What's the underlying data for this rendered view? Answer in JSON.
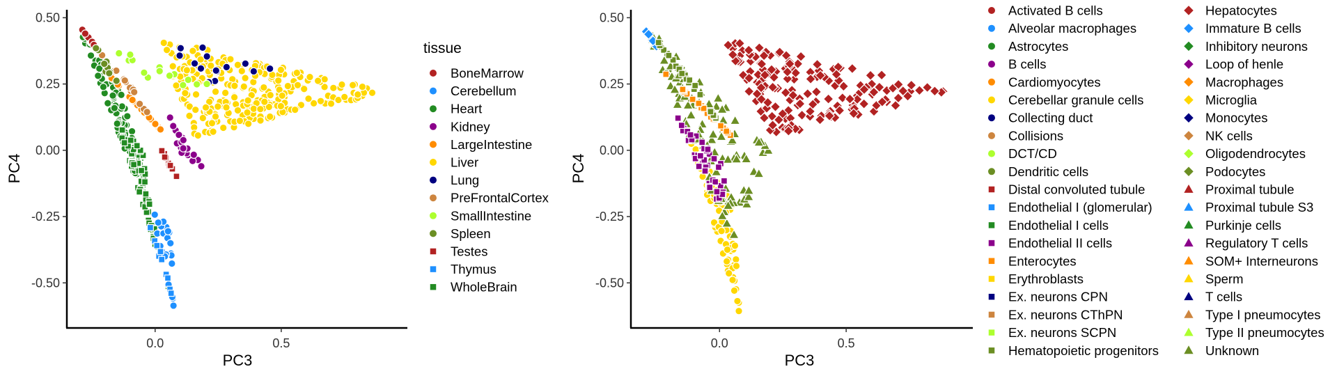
{
  "chart_data": [
    {
      "type": "scatter",
      "xlabel": "PC3",
      "ylabel": "PC4",
      "xlim": [
        -0.35,
        1.0
      ],
      "ylim": [
        -0.67,
        0.53
      ],
      "xticks": [
        0.0,
        0.5
      ],
      "xtick_labels": [
        "0.0",
        "0.5"
      ],
      "yticks": [
        0.5,
        0.25,
        0.0,
        -0.25,
        -0.5
      ],
      "ytick_labels": [
        "0.50",
        "0.25",
        "0.00",
        "-0.25",
        "-0.50"
      ],
      "grid": false,
      "legend": {
        "title": "tissue",
        "placement": "right",
        "entries": [
          {
            "label": "BoneMarrow",
            "color": "#B22222",
            "shape": "circle"
          },
          {
            "label": "Cerebellum",
            "color": "#1E90FF",
            "shape": "circle"
          },
          {
            "label": "Heart",
            "color": "#228B22",
            "shape": "circle"
          },
          {
            "label": "Kidney",
            "color": "#8B008B",
            "shape": "circle"
          },
          {
            "label": "LargeIntestine",
            "color": "#FF8C00",
            "shape": "circle"
          },
          {
            "label": "Liver",
            "color": "#FFD700",
            "shape": "circle"
          },
          {
            "label": "Lung",
            "color": "#000080",
            "shape": "circle"
          },
          {
            "label": "PreFrontalCortex",
            "color": "#CD853F",
            "shape": "circle"
          },
          {
            "label": "SmallIntestine",
            "color": "#ADFF2F",
            "shape": "circle"
          },
          {
            "label": "Spleen",
            "color": "#6B8E23",
            "shape": "circle"
          },
          {
            "label": "Testes",
            "color": "#B22222",
            "shape": "square"
          },
          {
            "label": "Thymus",
            "color": "#1E90FF",
            "shape": "square"
          },
          {
            "label": "WholeBrain",
            "color": "#228B22",
            "shape": "square"
          }
        ]
      },
      "series": [
        {
          "name": "Liver",
          "color": "#FFD700",
          "shape": "circle",
          "region": [
            [
              0.02,
              0.42
            ],
            [
              0.93,
              0.22
            ],
            [
              0.15,
              0.05
            ],
            [
              0.05,
              0.35
            ]
          ],
          "n": 260
        },
        {
          "name": "Heart",
          "color": "#228B22",
          "shape": "circle",
          "region": [
            [
              -0.3,
              0.46
            ],
            [
              -0.12,
              0.2
            ],
            [
              0.02,
              -0.35
            ],
            [
              -0.1,
              0.0
            ]
          ],
          "n": 90
        },
        {
          "name": "WholeBrain",
          "color": "#228B22",
          "shape": "square",
          "region": [
            [
              -0.15,
              0.1
            ],
            [
              0.08,
              -0.6
            ],
            [
              0.0,
              -0.3
            ],
            [
              -0.05,
              0.0
            ]
          ],
          "n": 80
        },
        {
          "name": "Cerebellum",
          "color": "#1E90FF",
          "shape": "circle",
          "region": [
            [
              -0.02,
              -0.2
            ],
            [
              0.08,
              -0.62
            ],
            [
              0.06,
              -0.3
            ]
          ],
          "n": 25
        },
        {
          "name": "Kidney",
          "color": "#8B008B",
          "shape": "circle",
          "region": [
            [
              0.05,
              0.15
            ],
            [
              0.2,
              -0.08
            ],
            [
              0.1,
              -0.02
            ]
          ],
          "n": 20
        },
        {
          "name": "LargeIntestine",
          "color": "#FF8C00",
          "shape": "circle",
          "region": [
            [
              -0.2,
              0.3
            ],
            [
              0.05,
              0.05
            ],
            [
              -0.05,
              0.15
            ]
          ],
          "n": 35
        },
        {
          "name": "Lung",
          "color": "#000080",
          "shape": "circle",
          "region": [
            [
              0.0,
              0.45
            ],
            [
              0.5,
              0.3
            ],
            [
              0.2,
              0.25
            ]
          ],
          "n": 14
        },
        {
          "name": "SmallIntestine",
          "color": "#ADFF2F",
          "shape": "circle",
          "region": [
            [
              -0.2,
              0.4
            ],
            [
              0.35,
              0.2
            ],
            [
              0.0,
              0.25
            ]
          ],
          "n": 15
        },
        {
          "name": "PreFrontalCortex",
          "color": "#CD853F",
          "shape": "circle",
          "region": [
            [
              -0.25,
              0.4
            ],
            [
              0.0,
              0.1
            ],
            [
              -0.1,
              0.25
            ]
          ],
          "n": 15
        },
        {
          "name": "BoneMarrow",
          "color": "#B22222",
          "shape": "circle",
          "region": [
            [
              -0.3,
              0.47
            ],
            [
              -0.2,
              0.35
            ],
            [
              -0.25,
              0.4
            ]
          ],
          "n": 12
        },
        {
          "name": "Testes",
          "color": "#B22222",
          "shape": "square",
          "region": [
            [
              0.0,
              0.05
            ],
            [
              0.1,
              -0.12
            ],
            [
              0.05,
              -0.05
            ]
          ],
          "n": 12
        },
        {
          "name": "Spleen",
          "color": "#6B8E23",
          "shape": "circle",
          "region": [
            [
              -0.25,
              0.42
            ],
            [
              -0.1,
              0.2
            ],
            [
              -0.2,
              0.3
            ]
          ],
          "n": 10
        },
        {
          "name": "Thymus",
          "color": "#1E90FF",
          "shape": "square",
          "region": [
            [
              -0.05,
              -0.2
            ],
            [
              0.08,
              -0.6
            ],
            [
              0.03,
              -0.4
            ]
          ],
          "n": 10
        }
      ]
    },
    {
      "type": "scatter",
      "xlabel": "PC3",
      "ylabel": "PC4",
      "xlim": [
        -0.35,
        1.0
      ],
      "ylim": [
        -0.67,
        0.53
      ],
      "xticks": [
        0.0,
        0.5
      ],
      "xtick_labels": [
        "0.0",
        "0.5"
      ],
      "yticks": [
        0.5,
        0.25,
        0.0,
        -0.25,
        -0.5
      ],
      "ytick_labels": [
        "0.50",
        "0.25",
        "0.00",
        "-0.25",
        "-0.50"
      ],
      "grid": false,
      "legend": {
        "placement": "right",
        "columns": 2,
        "entries": [
          {
            "label": "Activated B cells",
            "color": "#B22222",
            "shape": "circle"
          },
          {
            "label": "Alveolar macrophages",
            "color": "#1E90FF",
            "shape": "circle"
          },
          {
            "label": "Astrocytes",
            "color": "#228B22",
            "shape": "circle"
          },
          {
            "label": "B cells",
            "color": "#8B008B",
            "shape": "circle"
          },
          {
            "label": "Cardiomyocytes",
            "color": "#FF8C00",
            "shape": "circle"
          },
          {
            "label": "Cerebellar granule cells",
            "color": "#FFD700",
            "shape": "circle"
          },
          {
            "label": "Collecting duct",
            "color": "#000080",
            "shape": "circle"
          },
          {
            "label": "Collisions",
            "color": "#CD853F",
            "shape": "circle"
          },
          {
            "label": "DCT/CD",
            "color": "#ADFF2F",
            "shape": "circle"
          },
          {
            "label": "Dendritic cells",
            "color": "#6B8E23",
            "shape": "circle"
          },
          {
            "label": "Distal convoluted tubule",
            "color": "#B22222",
            "shape": "square"
          },
          {
            "label": "Endothelial I (glomerular)",
            "color": "#1E90FF",
            "shape": "square"
          },
          {
            "label": "Endothelial I cells",
            "color": "#228B22",
            "shape": "square"
          },
          {
            "label": "Endothelial II cells",
            "color": "#8B008B",
            "shape": "square"
          },
          {
            "label": "Enterocytes",
            "color": "#FF8C00",
            "shape": "square"
          },
          {
            "label": "Erythroblasts",
            "color": "#FFD700",
            "shape": "square"
          },
          {
            "label": "Ex. neurons CPN",
            "color": "#000080",
            "shape": "square"
          },
          {
            "label": "Ex. neurons CThPN",
            "color": "#CD853F",
            "shape": "square"
          },
          {
            "label": "Ex. neurons SCPN",
            "color": "#ADFF2F",
            "shape": "square"
          },
          {
            "label": "Hematopoietic progenitors",
            "color": "#6B8E23",
            "shape": "square"
          },
          {
            "label": "Hepatocytes",
            "color": "#B22222",
            "shape": "diamond"
          },
          {
            "label": "Immature B cells",
            "color": "#1E90FF",
            "shape": "diamond"
          },
          {
            "label": "Inhibitory neurons",
            "color": "#228B22",
            "shape": "diamond"
          },
          {
            "label": "Loop of henle",
            "color": "#8B008B",
            "shape": "diamond"
          },
          {
            "label": "Macrophages",
            "color": "#FF8C00",
            "shape": "diamond"
          },
          {
            "label": "Microglia",
            "color": "#FFD700",
            "shape": "diamond"
          },
          {
            "label": "Monocytes",
            "color": "#000080",
            "shape": "diamond"
          },
          {
            "label": "NK cells",
            "color": "#CD853F",
            "shape": "diamond"
          },
          {
            "label": "Oligodendrocytes",
            "color": "#ADFF2F",
            "shape": "diamond"
          },
          {
            "label": "Podocytes",
            "color": "#6B8E23",
            "shape": "diamond"
          },
          {
            "label": "Proximal tubule",
            "color": "#B22222",
            "shape": "triangle"
          },
          {
            "label": "Proximal tubule S3",
            "color": "#1E90FF",
            "shape": "triangle"
          },
          {
            "label": "Purkinje cells",
            "color": "#228B22",
            "shape": "triangle"
          },
          {
            "label": "Regulatory T cells",
            "color": "#8B008B",
            "shape": "triangle"
          },
          {
            "label": "SOM+ Interneurons",
            "color": "#FF8C00",
            "shape": "triangle"
          },
          {
            "label": "Sperm",
            "color": "#FFD700",
            "shape": "triangle"
          },
          {
            "label": "T cells",
            "color": "#000080",
            "shape": "triangle"
          },
          {
            "label": "Type I pneumocytes",
            "color": "#CD853F",
            "shape": "triangle"
          },
          {
            "label": "Type II pneumocytes",
            "color": "#ADFF2F",
            "shape": "triangle"
          },
          {
            "label": "Unknown",
            "color": "#6B8E23",
            "shape": "triangle"
          }
        ]
      },
      "series": [
        {
          "name": "Hepatocytes",
          "color": "#B22222",
          "shape": "diamond",
          "region": [
            [
              0.02,
              0.42
            ],
            [
              0.93,
              0.22
            ],
            [
              0.2,
              0.05
            ],
            [
              0.1,
              0.3
            ]
          ],
          "n": 170
        },
        {
          "name": "Cerebellar granule cells",
          "color": "#FFD700",
          "shape": "circle",
          "region": [
            [
              -0.12,
              0.05
            ],
            [
              0.08,
              -0.62
            ],
            [
              0.05,
              -0.2
            ]
          ],
          "n": 90
        },
        {
          "name": "Unknown",
          "color": "#6B8E23",
          "shape": "triangle",
          "region": [
            [
              -0.3,
              0.48
            ],
            [
              0.2,
              0.0
            ],
            [
              0.05,
              -0.35
            ],
            [
              -0.05,
              0.15
            ]
          ],
          "n": 110
        },
        {
          "name": "Endothelial II cells",
          "color": "#8B008B",
          "shape": "square",
          "region": [
            [
              -0.2,
              0.18
            ],
            [
              0.05,
              -0.1
            ],
            [
              0.0,
              -0.25
            ]
          ],
          "n": 40
        },
        {
          "name": "Enterocytes",
          "color": "#FF8C00",
          "shape": "square",
          "region": [
            [
              -0.25,
              0.32
            ],
            [
              0.05,
              0.05
            ],
            [
              -0.05,
              0.15
            ]
          ],
          "n": 25
        },
        {
          "name": "Immature B cells",
          "color": "#1E90FF",
          "shape": "diamond",
          "region": [
            [
              -0.3,
              0.46
            ],
            [
              -0.24,
              0.38
            ],
            [
              -0.26,
              0.42
            ]
          ],
          "n": 5
        },
        {
          "name": "Hematopoietic progenitors",
          "color": "#6B8E23",
          "shape": "square",
          "region": [
            [
              -0.28,
              0.45
            ],
            [
              0.0,
              0.1
            ],
            [
              -0.1,
              0.25
            ]
          ],
          "n": 25
        }
      ]
    }
  ]
}
